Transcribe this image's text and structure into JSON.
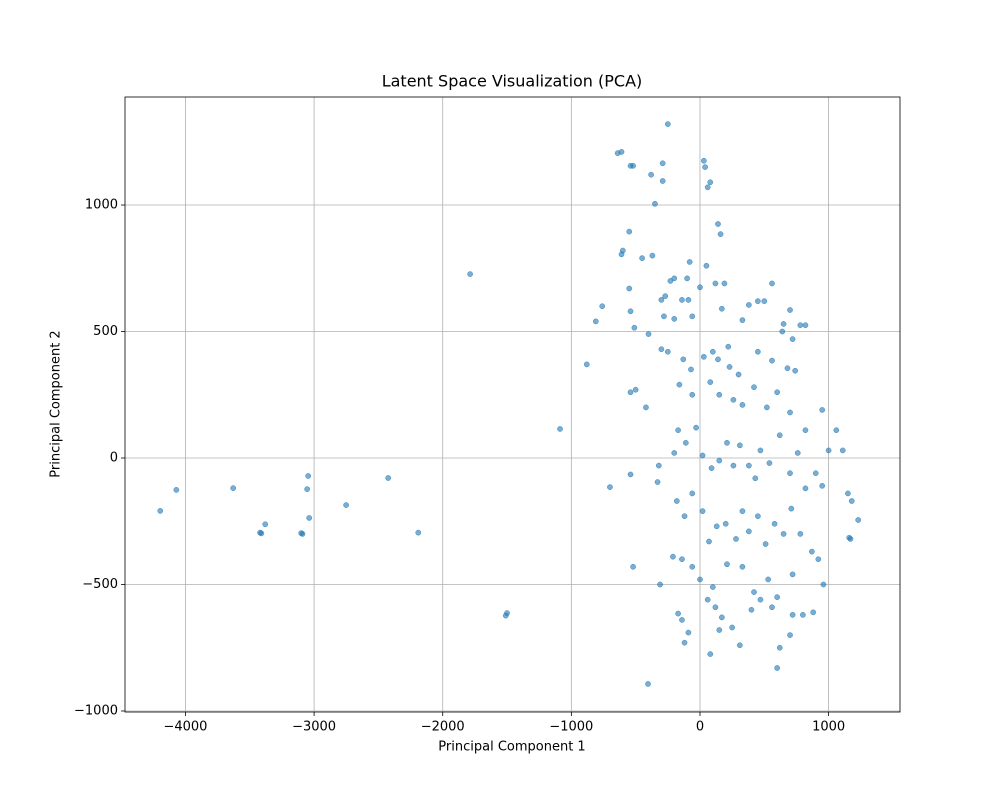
{
  "chart_data": {
    "type": "scatter",
    "title": "Latent Space Visualization (PCA)",
    "x_label": "Principal Component 1",
    "y_label": "Principal Component 2",
    "color": "#1f77b4",
    "grid": true,
    "xlim": [
      -4470,
      1555
    ],
    "ylim": [
      -1004,
      1427
    ],
    "xticks": [
      {
        "value": -4000,
        "label": "−4000"
      },
      {
        "value": -3000,
        "label": "−3000"
      },
      {
        "value": -2000,
        "label": "−2000"
      },
      {
        "value": -1000,
        "label": "−1000"
      },
      0,
      1000
    ],
    "yticks": [
      {
        "value": -1000,
        "label": "−1000"
      },
      {
        "value": -500,
        "label": "−500"
      },
      0,
      500,
      1000
    ],
    "x": [
      -4196,
      -4071,
      -3629,
      -3046,
      -3054,
      -3038,
      -2751,
      -2424,
      -3420,
      -3410,
      -3380,
      -3090,
      -3100,
      -2190,
      -1787,
      -1500,
      -1510,
      -1088,
      -404,
      -250,
      -640,
      -610,
      -540,
      -520,
      -380,
      -290,
      -290,
      30,
      40,
      80,
      60,
      -350,
      140,
      160,
      -550,
      -600,
      -610,
      -450,
      -370,
      -100,
      -200,
      -230,
      -80,
      50,
      120,
      190,
      560,
      500,
      450,
      -300,
      -270,
      -140,
      -90,
      0,
      380,
      -880,
      -760,
      -810,
      -510,
      -540,
      -550,
      -280,
      -200,
      -400,
      -60,
      170,
      330,
      700,
      650,
      780,
      820,
      720,
      640,
      -300,
      -250,
      -130,
      -70,
      30,
      100,
      140,
      220,
      230,
      300,
      450,
      560,
      680,
      740,
      -500,
      -420,
      -540,
      -160,
      -60,
      80,
      150,
      260,
      330,
      420,
      520,
      600,
      700,
      820,
      950,
      1060,
      1000,
      1110,
      -700,
      -540,
      -320,
      -330,
      -200,
      -170,
      -110,
      -30,
      20,
      90,
      150,
      210,
      260,
      310,
      380,
      430,
      470,
      540,
      620,
      700,
      760,
      820,
      900,
      950,
      -180,
      -120,
      -60,
      20,
      70,
      130,
      200,
      280,
      330,
      380,
      450,
      510,
      580,
      650,
      710,
      780,
      870,
      920,
      960,
      1150,
      1180,
      1230,
      1160,
      1170,
      -520,
      -310,
      -210,
      -140,
      -60,
      0,
      100,
      210,
      330,
      420,
      530,
      600,
      720,
      800,
      880,
      -170,
      -140,
      -90,
      -120,
      60,
      120,
      170,
      150,
      250,
      310,
      400,
      470,
      560,
      620,
      700,
      600,
      80,
      720
    ],
    "values": [
      -209,
      -126,
      -119,
      -71,
      -123,
      -237,
      -186,
      -79,
      -295,
      -298,
      -262,
      -300,
      -297,
      -295,
      727,
      -613,
      -623,
      115,
      -893,
      1320,
      1205,
      1210,
      1155,
      1155,
      1120,
      1165,
      1095,
      1175,
      1150,
      1090,
      1070,
      1005,
      925,
      885,
      895,
      820,
      805,
      790,
      800,
      710,
      710,
      700,
      775,
      760,
      690,
      690,
      690,
      620,
      620,
      625,
      640,
      625,
      625,
      675,
      605,
      370,
      600,
      540,
      515,
      580,
      670,
      560,
      550,
      490,
      560,
      590,
      545,
      585,
      530,
      525,
      525,
      470,
      500,
      430,
      420,
      390,
      350,
      400,
      420,
      390,
      440,
      360,
      330,
      420,
      385,
      355,
      345,
      270,
      200,
      260,
      290,
      250,
      300,
      250,
      230,
      210,
      280,
      200,
      260,
      180,
      110,
      190,
      110,
      30,
      30,
      -115,
      -65,
      -30,
      -95,
      20,
      110,
      60,
      120,
      10,
      -40,
      -10,
      60,
      -30,
      50,
      -30,
      -80,
      30,
      -20,
      90,
      -60,
      20,
      -120,
      -60,
      -110,
      -170,
      -230,
      -140,
      -210,
      -330,
      -270,
      -260,
      -320,
      -210,
      -290,
      -230,
      -340,
      -260,
      -300,
      -200,
      -300,
      -370,
      -400,
      -500,
      -140,
      -170,
      -245,
      -315,
      -320,
      -430,
      -500,
      -390,
      -400,
      -430,
      -480,
      -510,
      -420,
      -430,
      -530,
      -480,
      -550,
      -460,
      -620,
      -610,
      -615,
      -640,
      -690,
      -730,
      -560,
      -590,
      -630,
      -680,
      -670,
      -740,
      -600,
      -560,
      -590,
      -750,
      -700,
      -830,
      -775,
      -620
    ]
  }
}
